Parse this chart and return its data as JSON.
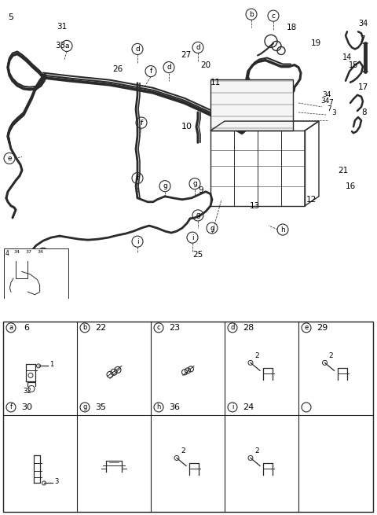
{
  "bg_color": "#ffffff",
  "line_color": "#2a2a2a",
  "text_color": "#000000",
  "fig_width": 4.8,
  "fig_height": 6.55,
  "dpi": 100,
  "table_letters": [
    "a",
    "b",
    "c",
    "d",
    "e",
    "f",
    "g",
    "h",
    "i"
  ],
  "table_nums_row1": [
    "6",
    "22",
    "23",
    "28",
    "29"
  ],
  "table_nums_row2": [
    "30",
    "35",
    "36",
    "24",
    ""
  ],
  "table_labels_row1": [
    "a",
    "b",
    "c",
    "d",
    "e"
  ],
  "table_labels_row2": [
    "f",
    "g",
    "h",
    "i",
    ""
  ]
}
